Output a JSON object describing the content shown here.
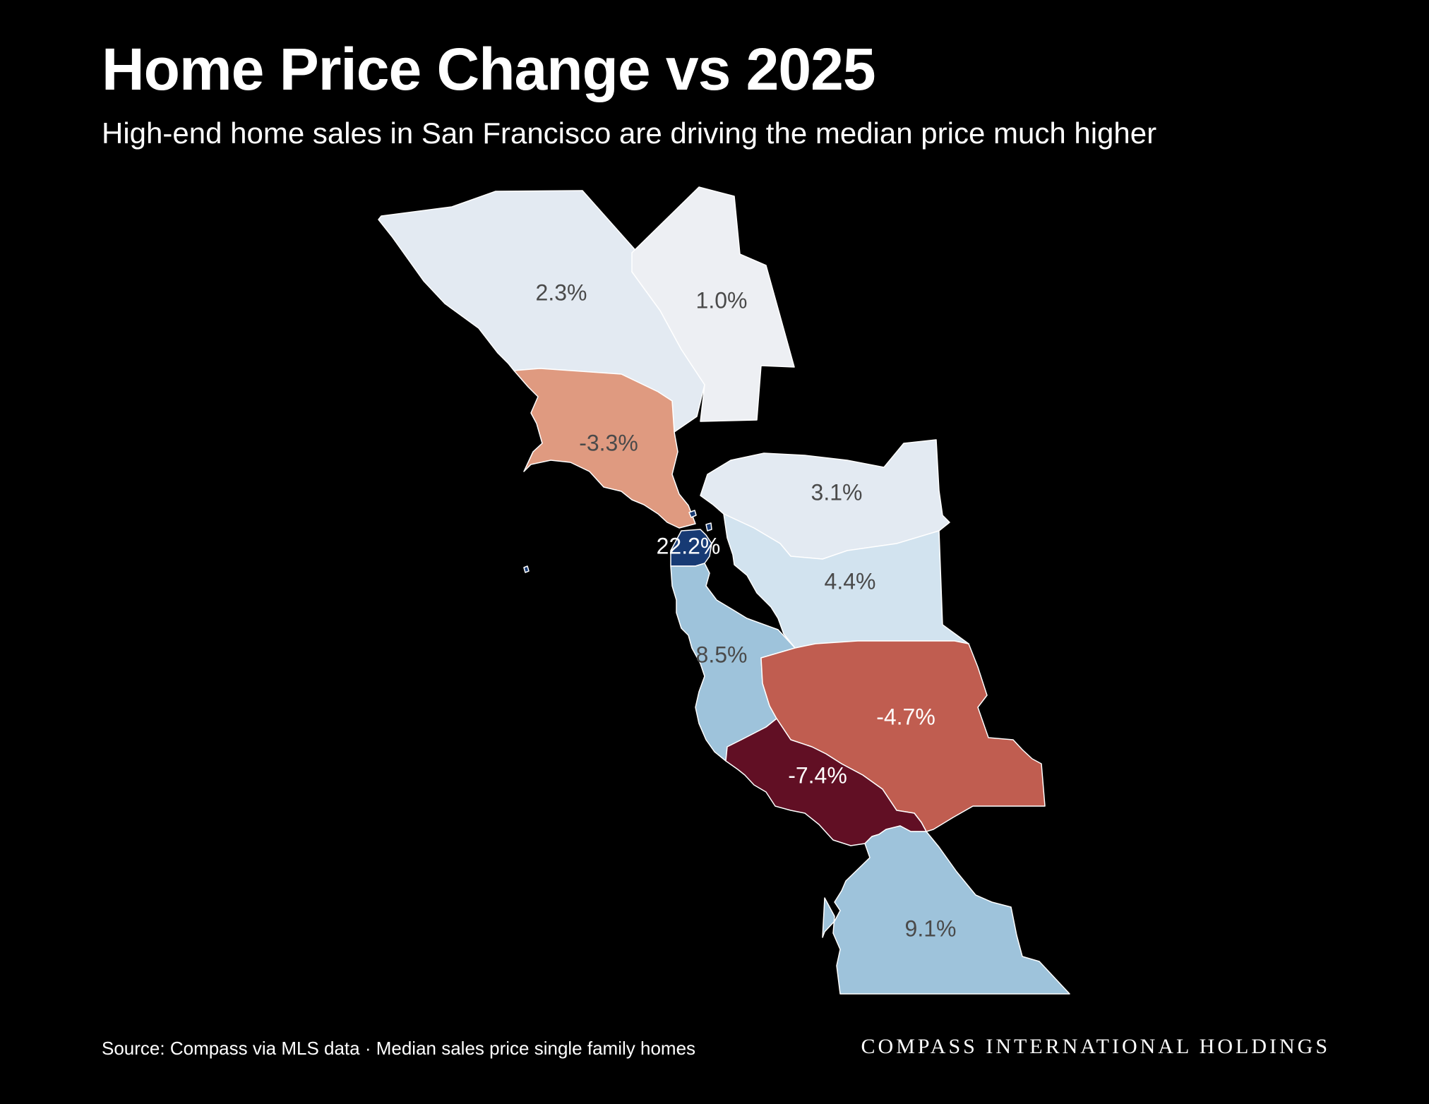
{
  "header": {
    "title": "Home Price Change vs 2025",
    "subtitle": "High-end home sales in San Francisco are driving the median price much higher"
  },
  "map": {
    "counties": [
      {
        "id": "sonoma",
        "label": "2.3%",
        "value": 2.3,
        "fill": "#e3eaf2",
        "label_color": "#4a4a4a"
      },
      {
        "id": "napa",
        "label": "1.0%",
        "value": 1.0,
        "fill": "#edeff3",
        "label_color": "#4a4a4a"
      },
      {
        "id": "marin",
        "label": "-3.3%",
        "value": -3.3,
        "fill": "#df9a80",
        "label_color": "#4a4a4a"
      },
      {
        "id": "contra-costa",
        "label": "3.1%",
        "value": 3.1,
        "fill": "#e3eaf2",
        "label_color": "#4a4a4a"
      },
      {
        "id": "alameda",
        "label": "4.4%",
        "value": 4.4,
        "fill": "#d2e3ef",
        "label_color": "#4a4a4a"
      },
      {
        "id": "san-francisco",
        "label": "22.2%",
        "value": 22.2,
        "fill": "#173a74",
        "label_color": "#ffffff"
      },
      {
        "id": "san-mateo",
        "label": "8.5%",
        "value": 8.5,
        "fill": "#9ec3db",
        "label_color": "#4a4a4a"
      },
      {
        "id": "santa-clara",
        "label": "-4.7%",
        "value": -4.7,
        "fill": "#c05d50",
        "label_color": "#ffffff"
      },
      {
        "id": "santa-cruz",
        "label": "-7.4%",
        "value": -7.4,
        "fill": "#610f24",
        "label_color": "#ffffff"
      },
      {
        "id": "monterey",
        "label": "9.1%",
        "value": 9.1,
        "fill": "#9ec3db",
        "label_color": "#4a4a4a"
      }
    ]
  },
  "footer": {
    "source": "Source: Compass via MLS data · Median sales price single family homes",
    "brand": "COMPASS INTERNATIONAL HOLDINGS"
  }
}
